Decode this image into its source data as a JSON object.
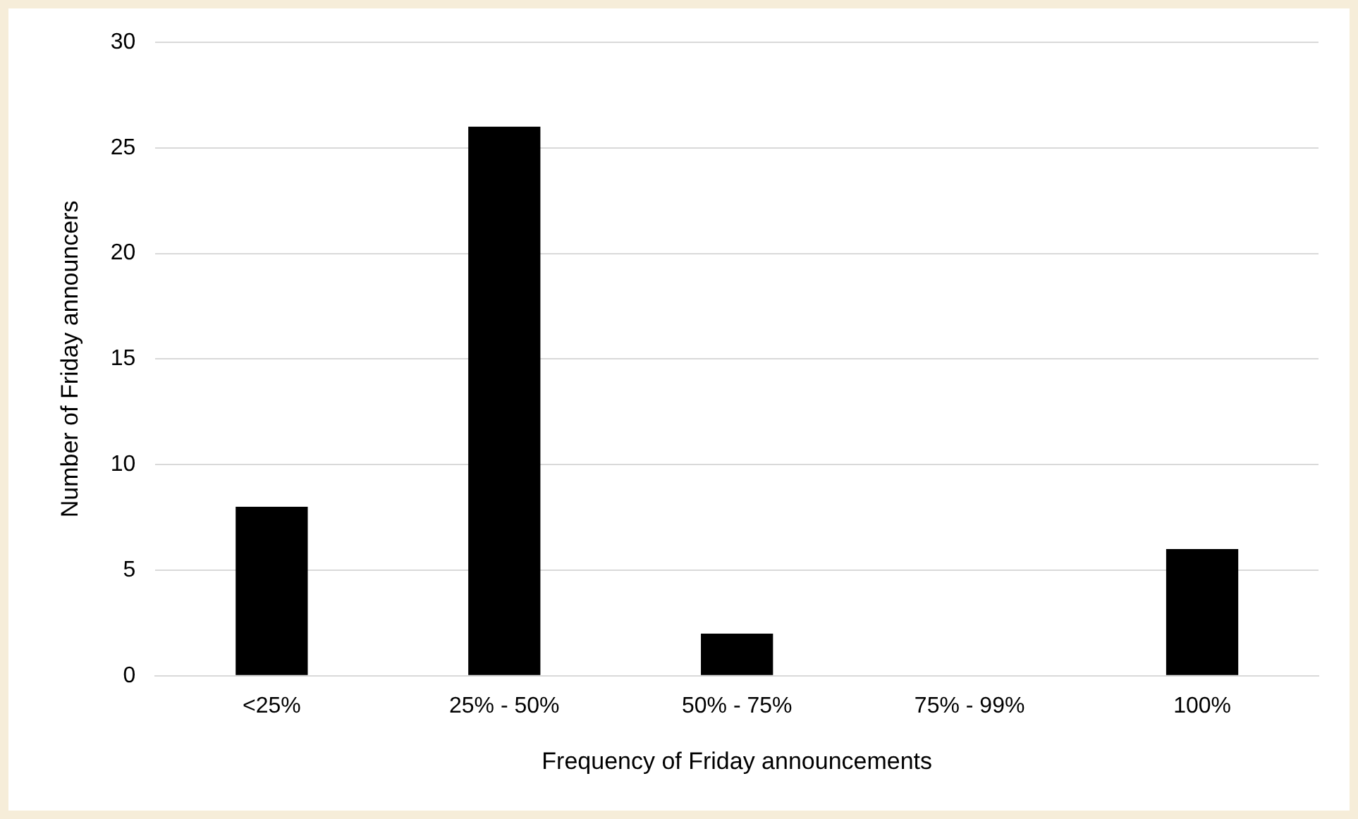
{
  "chart_data": {
    "type": "bar",
    "xlabel": "Frequency of Friday announcements",
    "ylabel": "Number of Friday announcers",
    "categories": [
      "<25%",
      "25% - 50%",
      "50% - 75%",
      "75% - 99%",
      "100%"
    ],
    "values": [
      8,
      26,
      2,
      0,
      6
    ],
    "color": "#000000",
    "ylim": [
      0,
      30
    ],
    "yticks": [
      0,
      5,
      10,
      15,
      20,
      25,
      30
    ],
    "grid": "y",
    "legend": false
  }
}
